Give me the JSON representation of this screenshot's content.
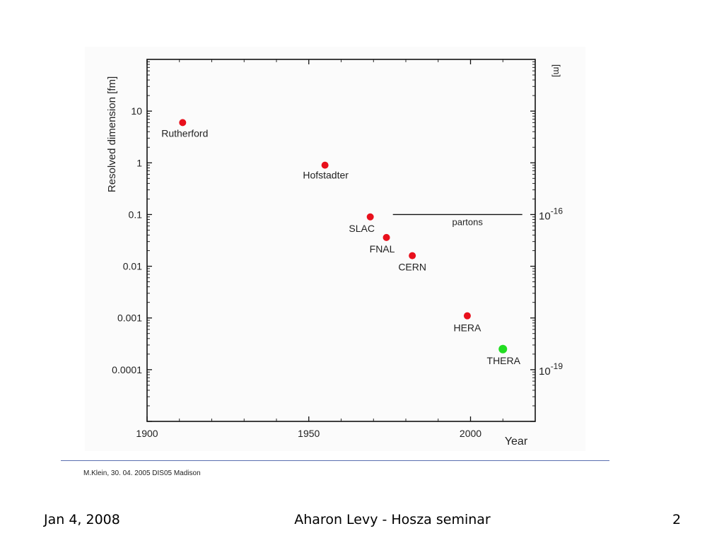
{
  "chart_data": {
    "type": "scatter",
    "title": "",
    "xlabel": "Year",
    "ylabel": "Resolved dimension [fm]",
    "y2label": "[m]",
    "xlim": [
      1900,
      2020
    ],
    "ylim": [
      1e-05,
      100
    ],
    "yscale": "log",
    "x_ticks": [
      1900,
      1950,
      2000
    ],
    "y_ticks": [
      {
        "value": 10,
        "label": "10"
      },
      {
        "value": 1,
        "label": "1"
      },
      {
        "value": 0.1,
        "label": "0.1"
      },
      {
        "value": 0.01,
        "label": "0.01"
      },
      {
        "value": 0.001,
        "label": "0.001"
      },
      {
        "value": 0.0001,
        "label": "0.0001"
      }
    ],
    "y2_ticks": [
      {
        "value": 0.1,
        "base": "10",
        "exponent": "-16"
      },
      {
        "value": 0.0001,
        "base": "10",
        "exponent": "-19"
      }
    ],
    "points": [
      {
        "label": "Rutherford",
        "x": 1911,
        "y": 6,
        "color": "#e8101c"
      },
      {
        "label": "Hofstadter",
        "x": 1955,
        "y": 0.9,
        "color": "#e8101c"
      },
      {
        "label": "SLAC",
        "x": 1969,
        "y": 0.09,
        "color": "#e8101c"
      },
      {
        "label": "FNAL",
        "x": 1974,
        "y": 0.036,
        "color": "#e8101c"
      },
      {
        "label": "CERN",
        "x": 1982,
        "y": 0.016,
        "color": "#e8101c"
      },
      {
        "label": "HERA",
        "x": 1999,
        "y": 0.0011,
        "color": "#e8101c"
      },
      {
        "label": "THERA",
        "x": 2010,
        "y": 0.00025,
        "color": "#22dd22"
      }
    ],
    "annotation": {
      "text": "partons",
      "x_start": 1976,
      "x_end": 2016,
      "y": 0.1
    },
    "grid": false,
    "legend": "none"
  },
  "figure_credit": "M.Klein, 30. 04. 2005 DIS05 Madison",
  "footer": {
    "date": "Jan 4, 2008",
    "title": "Aharon Levy - Hosza seminar",
    "page": "2"
  }
}
